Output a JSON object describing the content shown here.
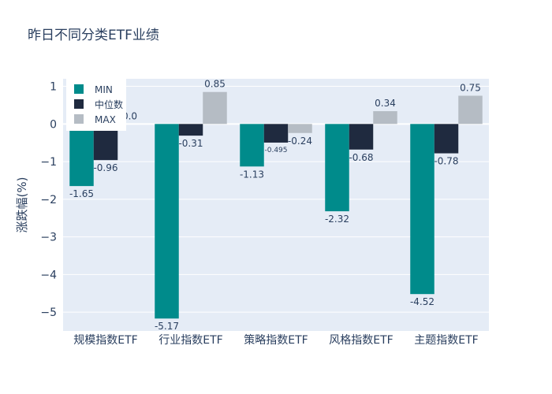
{
  "chart_data": {
    "type": "bar",
    "title": "昨日不同分类ETF业绩",
    "xlabel": "",
    "ylabel": "涨跌幅(%)",
    "ylim": [
      -5.5,
      1.2
    ],
    "yticks": [
      1,
      0,
      -1,
      -2,
      -3,
      -4,
      -5
    ],
    "ytick_labels": [
      "1",
      "0",
      "−1",
      "−2",
      "−3",
      "−4",
      "−5"
    ],
    "categories": [
      "规模指数ETF",
      "行业指数ETF",
      "策略指数ETF",
      "风格指数ETF",
      "主题指数ETF"
    ],
    "series": [
      {
        "name": "MIN",
        "color": "#008b8b",
        "values": [
          -1.65,
          -5.17,
          -1.13,
          -2.32,
          -4.52
        ],
        "labels": [
          "-1.65",
          "-5.17",
          "-1.13",
          "-2.32",
          "-4.52"
        ]
      },
      {
        "name": "中位数",
        "color": "#1f2a3f",
        "values": [
          -0.96,
          -0.31,
          -0.495,
          -0.68,
          -0.78
        ],
        "labels": [
          "-0.96",
          "-0.31",
          "-0.495",
          "-0.68",
          "-0.78"
        ]
      },
      {
        "name": "MAX",
        "color": "#b5bcc4",
        "values": [
          0.0,
          0.85,
          -0.24,
          0.34,
          0.75
        ],
        "labels": [
          "0.0",
          "0.85",
          "-0.24",
          "0.34",
          "0.75"
        ]
      }
    ],
    "grid": true,
    "legend_position": "top-left"
  }
}
